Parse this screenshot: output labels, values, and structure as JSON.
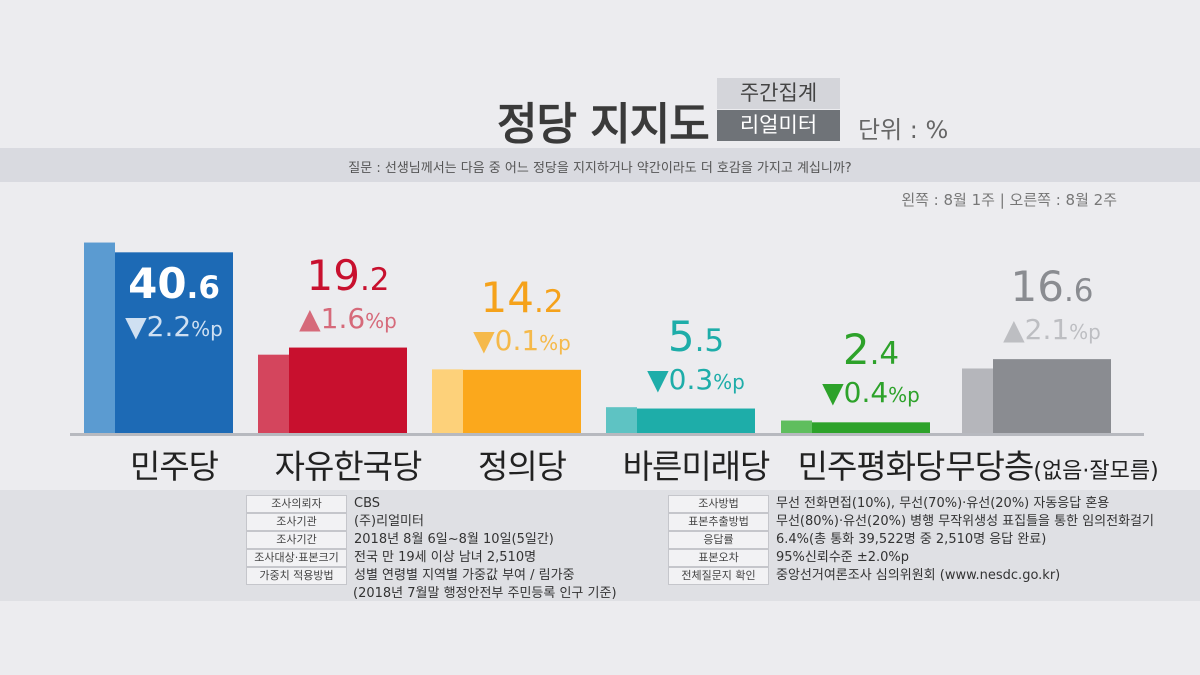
{
  "header": {
    "title": "정당 지지도",
    "tag_top": "주간집계",
    "tag_bottom": "리얼미터",
    "unit": "단위 : %",
    "question": "질문 : 선생님께서는 다음 중 어느 정당을 지지하거나 약간이라도 더 호감을 가지고 계십니까?",
    "legend_note": "왼쪽 : 8월 1주 | 오른쪽 : 8월 2주"
  },
  "chart_data": {
    "type": "bar",
    "categories": [
      "민주당",
      "자유한국당",
      "정의당",
      "바른미래당",
      "민주평화당",
      "무당층"
    ],
    "category_suffix": [
      "",
      "",
      "",
      "",
      "",
      "(없음·잘모름)"
    ],
    "series": [
      {
        "name": "8월 1주",
        "values": [
          42.8,
          17.6,
          14.3,
          5.8,
          2.8,
          14.5
        ]
      },
      {
        "name": "8월 2주",
        "values": [
          40.6,
          19.2,
          14.2,
          5.5,
          2.4,
          16.6
        ]
      }
    ],
    "labels": [
      {
        "int": "40",
        "dec": ".6",
        "change": "▼2.2",
        "unit": "%p"
      },
      {
        "int": "19",
        "dec": ".2",
        "change": "▲1.6",
        "unit": "%p"
      },
      {
        "int": "14",
        "dec": ".2",
        "change": "▼0.1",
        "unit": "%p"
      },
      {
        "int": "5",
        "dec": ".5",
        "change": "▼0.3",
        "unit": "%p"
      },
      {
        "int": "2",
        "dec": ".4",
        "change": "▼0.4",
        "unit": "%p"
      },
      {
        "int": "16",
        "dec": ".6",
        "change": "▲2.1",
        "unit": "%p"
      }
    ],
    "colors_prev": [
      "#5b9bd1",
      "#d4455d",
      "#fdd17a",
      "#5ec3c3",
      "#5fbe5e",
      "#b5b6bb"
    ],
    "colors_curr": [
      "#1d6ab5",
      "#c8102e",
      "#fba81c",
      "#1eada9",
      "#2da22a",
      "#8a8c91"
    ],
    "label_colors": [
      "#ffffff",
      "#c8102e",
      "#f5a21b",
      "#1eada9",
      "#2da22a",
      "#8a8c91"
    ],
    "change_colors": [
      "#cfe0f2",
      "#d66a7a",
      "#f5b94a",
      "#1eada9",
      "#2da22a",
      "#bdbec2"
    ],
    "ylim": [
      0,
      45
    ],
    "grid": false
  },
  "info_left": [
    {
      "label": "조사의뢰자",
      "value": "CBS"
    },
    {
      "label": "조사기관",
      "value": "(주)리얼미터"
    },
    {
      "label": "조사기간",
      "value": "2018년 8월 6일~8월 10일(5일간)"
    },
    {
      "label": "조사대상·표본크기",
      "value": "전국 만 19세 이상 남녀 2,510명"
    },
    {
      "label": "가중치 적용방법",
      "value": "성별 연령별 지역별 가중값 부여 / 림가중"
    }
  ],
  "info_left_extra": "(2018년 7월말 행정안전부 주민등록 인구 기준)",
  "info_right": [
    {
      "label": "조사방법",
      "value": "무선 전화면접(10%), 무선(70%)·유선(20%) 자동응답 혼용"
    },
    {
      "label": "표본추출방법",
      "value": "무선(80%)·유선(20%) 병행 무작위생성 표집틀을 통한 임의전화걸기"
    },
    {
      "label": "응답률",
      "value": "6.4%(총 통화 39,522명 중 2,510명 응답 완료)"
    },
    {
      "label": "표본오차",
      "value": "95%신뢰수준 ±2.0%p"
    },
    {
      "label": "전체질문지 확인",
      "value": "중앙선거여론조사 심의위원회 (www.nesdc.go.kr)"
    }
  ]
}
